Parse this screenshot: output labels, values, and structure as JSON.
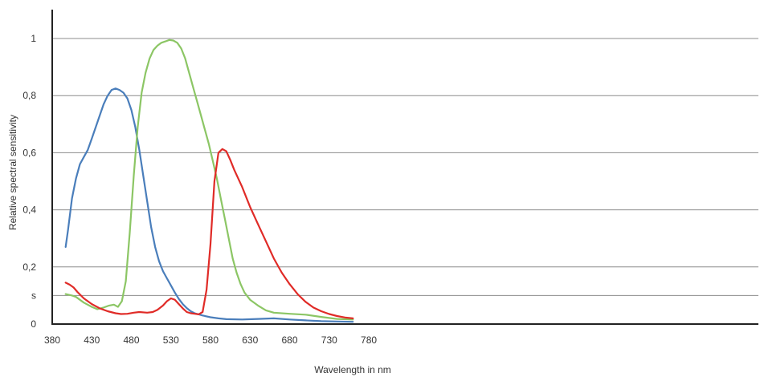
{
  "chart_data": {
    "type": "line",
    "title": "",
    "xlabel": "Wavelength in nm",
    "ylabel": "Relative spectral sensitivity",
    "xlim": [
      380,
      930
    ],
    "ylim": [
      0,
      1.1
    ],
    "grid": "horizontal",
    "x_ticks": [
      {
        "value": 380,
        "label": "380"
      },
      {
        "value": 430,
        "label": "430"
      },
      {
        "value": 480,
        "label": "480"
      },
      {
        "value": 530,
        "label": "530"
      },
      {
        "value": 580,
        "label": "580"
      },
      {
        "value": 630,
        "label": "630"
      },
      {
        "value": 680,
        "label": "680"
      },
      {
        "value": 730,
        "label": "730"
      },
      {
        "value": 780,
        "label": "780"
      }
    ],
    "y_ticks": [
      {
        "value": 0,
        "label": "0"
      },
      {
        "value": 0.1,
        "label": "s"
      },
      {
        "value": 0.2,
        "label": "0,2"
      },
      {
        "value": 0.4,
        "label": "0,4"
      },
      {
        "value": 0.6,
        "label": "0,6"
      },
      {
        "value": 0.8,
        "label": "0,8"
      },
      {
        "value": 1,
        "label": "1"
      }
    ],
    "series": [
      {
        "color": "#4a7ebb",
        "points": [
          [
            397,
            0.27
          ],
          [
            400,
            0.33
          ],
          [
            405,
            0.44
          ],
          [
            410,
            0.51
          ],
          [
            415,
            0.56
          ],
          [
            420,
            0.585
          ],
          [
            425,
            0.61
          ],
          [
            430,
            0.65
          ],
          [
            435,
            0.69
          ],
          [
            440,
            0.73
          ],
          [
            445,
            0.77
          ],
          [
            450,
            0.8
          ],
          [
            455,
            0.82
          ],
          [
            460,
            0.825
          ],
          [
            465,
            0.82
          ],
          [
            470,
            0.81
          ],
          [
            475,
            0.79
          ],
          [
            480,
            0.75
          ],
          [
            485,
            0.69
          ],
          [
            490,
            0.61
          ],
          [
            495,
            0.52
          ],
          [
            500,
            0.43
          ],
          [
            505,
            0.34
          ],
          [
            510,
            0.27
          ],
          [
            515,
            0.22
          ],
          [
            520,
            0.185
          ],
          [
            525,
            0.16
          ],
          [
            530,
            0.135
          ],
          [
            535,
            0.11
          ],
          [
            540,
            0.088
          ],
          [
            545,
            0.07
          ],
          [
            550,
            0.056
          ],
          [
            555,
            0.045
          ],
          [
            560,
            0.038
          ],
          [
            570,
            0.03
          ],
          [
            580,
            0.024
          ],
          [
            590,
            0.02
          ],
          [
            600,
            0.017
          ],
          [
            620,
            0.016
          ],
          [
            640,
            0.018
          ],
          [
            660,
            0.02
          ],
          [
            680,
            0.016
          ],
          [
            700,
            0.013
          ],
          [
            720,
            0.01
          ],
          [
            740,
            0.009
          ],
          [
            760,
            0.008
          ]
        ]
      },
      {
        "color": "#8cc665",
        "points": [
          [
            397,
            0.105
          ],
          [
            405,
            0.1
          ],
          [
            410,
            0.095
          ],
          [
            420,
            0.075
          ],
          [
            430,
            0.06
          ],
          [
            437,
            0.052
          ],
          [
            445,
            0.058
          ],
          [
            452,
            0.065
          ],
          [
            458,
            0.068
          ],
          [
            463,
            0.06
          ],
          [
            468,
            0.08
          ],
          [
            473,
            0.15
          ],
          [
            478,
            0.32
          ],
          [
            483,
            0.52
          ],
          [
            488,
            0.69
          ],
          [
            493,
            0.81
          ],
          [
            498,
            0.88
          ],
          [
            503,
            0.93
          ],
          [
            508,
            0.96
          ],
          [
            513,
            0.975
          ],
          [
            518,
            0.985
          ],
          [
            523,
            0.99
          ],
          [
            528,
            0.995
          ],
          [
            533,
            0.993
          ],
          [
            538,
            0.985
          ],
          [
            543,
            0.965
          ],
          [
            548,
            0.93
          ],
          [
            553,
            0.88
          ],
          [
            558,
            0.83
          ],
          [
            563,
            0.78
          ],
          [
            568,
            0.73
          ],
          [
            573,
            0.68
          ],
          [
            578,
            0.63
          ],
          [
            583,
            0.57
          ],
          [
            588,
            0.51
          ],
          [
            593,
            0.44
          ],
          [
            598,
            0.37
          ],
          [
            603,
            0.3
          ],
          [
            608,
            0.23
          ],
          [
            613,
            0.18
          ],
          [
            618,
            0.14
          ],
          [
            623,
            0.11
          ],
          [
            630,
            0.085
          ],
          [
            640,
            0.065
          ],
          [
            650,
            0.048
          ],
          [
            660,
            0.04
          ],
          [
            680,
            0.036
          ],
          [
            700,
            0.033
          ],
          [
            720,
            0.025
          ],
          [
            740,
            0.018
          ],
          [
            760,
            0.016
          ]
        ]
      },
      {
        "color": "#e02b27",
        "points": [
          [
            397,
            0.145
          ],
          [
            402,
            0.138
          ],
          [
            407,
            0.128
          ],
          [
            412,
            0.112
          ],
          [
            420,
            0.09
          ],
          [
            430,
            0.07
          ],
          [
            440,
            0.055
          ],
          [
            450,
            0.045
          ],
          [
            460,
            0.038
          ],
          [
            467,
            0.035
          ],
          [
            475,
            0.036
          ],
          [
            483,
            0.04
          ],
          [
            490,
            0.042
          ],
          [
            500,
            0.04
          ],
          [
            507,
            0.042
          ],
          [
            513,
            0.05
          ],
          [
            520,
            0.065
          ],
          [
            525,
            0.08
          ],
          [
            530,
            0.09
          ],
          [
            535,
            0.085
          ],
          [
            540,
            0.07
          ],
          [
            545,
            0.055
          ],
          [
            550,
            0.042
          ],
          [
            555,
            0.038
          ],
          [
            560,
            0.036
          ],
          [
            565,
            0.034
          ],
          [
            570,
            0.042
          ],
          [
            575,
            0.12
          ],
          [
            580,
            0.28
          ],
          [
            585,
            0.5
          ],
          [
            590,
            0.6
          ],
          [
            595,
            0.613
          ],
          [
            600,
            0.605
          ],
          [
            605,
            0.575
          ],
          [
            610,
            0.54
          ],
          [
            620,
            0.48
          ],
          [
            630,
            0.41
          ],
          [
            640,
            0.35
          ],
          [
            650,
            0.29
          ],
          [
            660,
            0.23
          ],
          [
            670,
            0.18
          ],
          [
            680,
            0.14
          ],
          [
            690,
            0.105
          ],
          [
            700,
            0.078
          ],
          [
            710,
            0.058
          ],
          [
            720,
            0.045
          ],
          [
            730,
            0.035
          ],
          [
            740,
            0.028
          ],
          [
            750,
            0.023
          ],
          [
            760,
            0.02
          ]
        ]
      }
    ]
  }
}
